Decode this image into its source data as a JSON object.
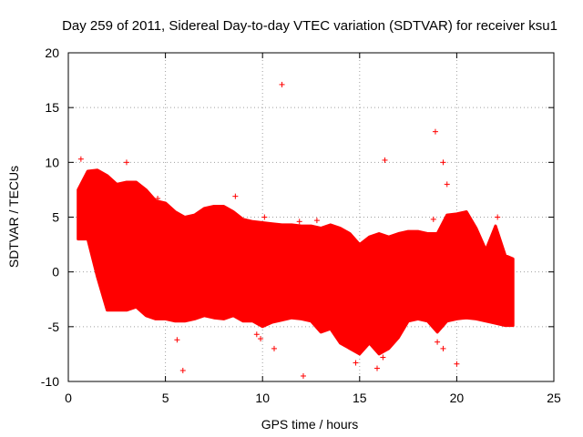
{
  "chart_data": {
    "type": "scatter",
    "title": "Day 259 of 2011, Sidereal Day-to-day VTEC variation (SDTVAR) for receiver ksu1",
    "xlabel": "GPS time / hours",
    "ylabel": "SDTVAR / TECUs",
    "xlim": [
      0,
      25
    ],
    "ylim": [
      -10,
      20
    ],
    "x_ticks": [
      0,
      5,
      10,
      15,
      20,
      25
    ],
    "y_ticks": [
      -10,
      -5,
      0,
      5,
      10,
      15,
      20
    ],
    "grid": true,
    "legend": "none",
    "marker": "plus",
    "color": "#ff0000",
    "series": [
      {
        "name": "ksu1",
        "envelope": {
          "x": [
            0.5,
            1.0,
            1.5,
            2.0,
            2.5,
            3.0,
            3.5,
            4.0,
            4.5,
            5.0,
            5.5,
            6.0,
            6.5,
            7.0,
            7.5,
            8.0,
            8.5,
            9.0,
            9.5,
            10.0,
            10.5,
            11.0,
            11.5,
            12.0,
            12.5,
            13.0,
            13.5,
            14.0,
            14.5,
            15.0,
            15.5,
            16.0,
            16.5,
            17.0,
            17.5,
            18.0,
            18.5,
            19.0,
            19.5,
            20.0,
            20.5,
            21.0,
            21.5,
            22.0,
            22.5,
            22.9
          ],
          "upper": [
            7.5,
            9.2,
            9.3,
            8.8,
            8.0,
            8.2,
            8.2,
            7.5,
            6.5,
            6.3,
            5.5,
            5.0,
            5.2,
            5.8,
            6.0,
            6.0,
            5.5,
            4.8,
            4.6,
            4.5,
            4.4,
            4.3,
            4.3,
            4.2,
            4.2,
            4.0,
            4.3,
            4.0,
            3.5,
            2.5,
            3.2,
            3.5,
            3.2,
            3.5,
            3.7,
            3.7,
            3.5,
            3.5,
            5.2,
            5.3,
            5.5,
            4.0,
            2.0,
            4.2,
            1.5,
            1.2
          ],
          "lower": [
            3.0,
            3.0,
            -0.5,
            -3.5,
            -3.5,
            -3.5,
            -3.2,
            -4.0,
            -4.3,
            -4.3,
            -4.5,
            -4.5,
            -4.3,
            -4.0,
            -4.2,
            -4.3,
            -4.0,
            -4.5,
            -4.5,
            -5.0,
            -4.6,
            -4.4,
            -4.2,
            -4.3,
            -4.5,
            -5.5,
            -5.2,
            -6.5,
            -7.0,
            -7.5,
            -6.5,
            -7.5,
            -7.0,
            -6.0,
            -4.5,
            -4.3,
            -4.5,
            -5.5,
            -4.5,
            -4.3,
            -4.2,
            -4.3,
            -4.5,
            -4.7,
            -4.9,
            -4.9
          ]
        },
        "outliers": [
          {
            "x": 11.0,
            "y": 17.1
          },
          {
            "x": 18.9,
            "y": 12.8
          },
          {
            "x": 16.3,
            "y": 10.2
          },
          {
            "x": 19.3,
            "y": 10.0
          },
          {
            "x": 3.0,
            "y": 10.0
          },
          {
            "x": 8.6,
            "y": 6.9
          },
          {
            "x": 5.9,
            "y": -9.0
          },
          {
            "x": 12.1,
            "y": -9.5
          },
          {
            "x": 20.0,
            "y": -8.4
          },
          {
            "x": 19.3,
            "y": -7.0
          },
          {
            "x": 5.6,
            "y": -6.2
          },
          {
            "x": 9.7,
            "y": -5.7
          },
          {
            "x": 9.9,
            "y": -6.1
          },
          {
            "x": 10.6,
            "y": -7.0
          },
          {
            "x": 14.8,
            "y": -8.3
          },
          {
            "x": 15.9,
            "y": -8.8
          },
          {
            "x": 16.2,
            "y": -7.8
          },
          {
            "x": 19.0,
            "y": -6.4
          },
          {
            "x": 0.65,
            "y": 10.3
          },
          {
            "x": 4.3,
            "y": 5.0
          },
          {
            "x": 4.6,
            "y": 6.7
          },
          {
            "x": 10.1,
            "y": 5.0
          },
          {
            "x": 11.9,
            "y": 4.6
          },
          {
            "x": 12.8,
            "y": 4.7
          },
          {
            "x": 18.8,
            "y": 4.8
          },
          {
            "x": 19.5,
            "y": 8.0
          },
          {
            "x": 22.1,
            "y": 5.0
          }
        ]
      }
    ]
  }
}
